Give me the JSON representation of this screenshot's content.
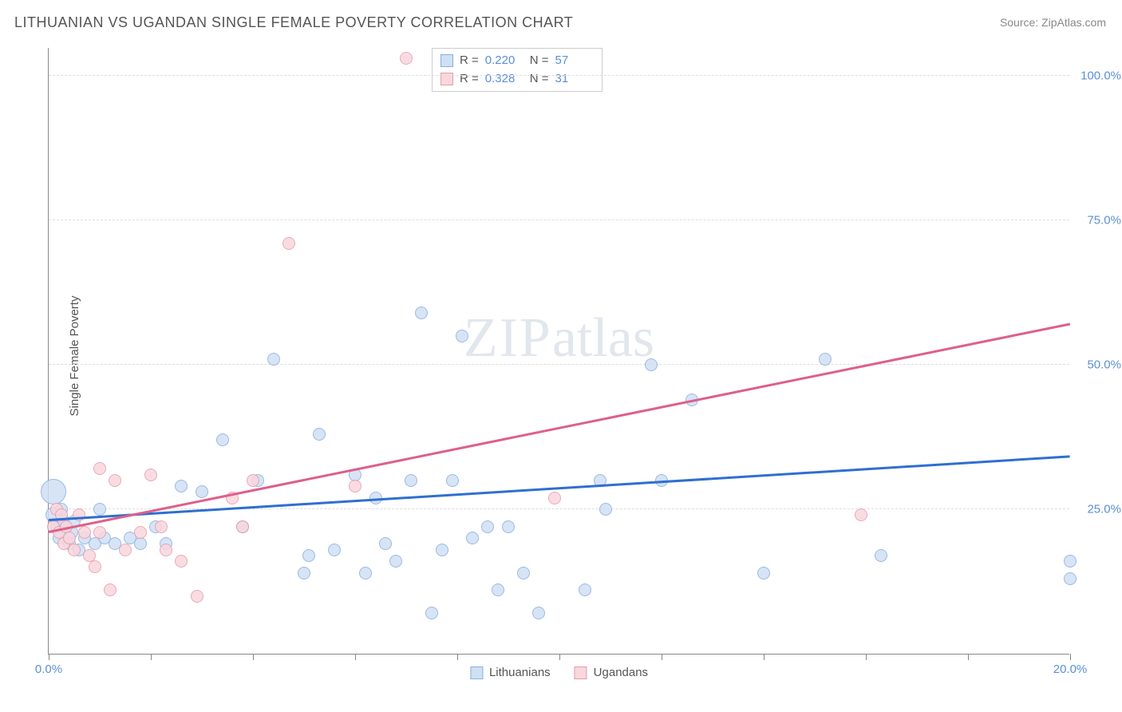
{
  "title": "LITHUANIAN VS UGANDAN SINGLE FEMALE POVERTY CORRELATION CHART",
  "source_label": "Source: ",
  "source_link_text": "ZipAtlas.com",
  "y_axis_label": "Single Female Poverty",
  "watermark_a": "ZIP",
  "watermark_b": "atlas",
  "chart": {
    "type": "scatter",
    "xlim": [
      0,
      20
    ],
    "ylim": [
      0,
      105
    ],
    "x_tick_positions": [
      0,
      2,
      4,
      6,
      8,
      10,
      12,
      14,
      16,
      18,
      20
    ],
    "x_tick_labels_shown": {
      "0": "0.0%",
      "20": "20.0%"
    },
    "y_tick_positions": [
      25,
      50,
      75,
      100
    ],
    "y_tick_labels": {
      "25": "25.0%",
      "50": "50.0%",
      "75": "75.0%",
      "100": "100.0%"
    },
    "background_color": "#ffffff",
    "grid_color": "#dddddd",
    "axis_color": "#888888",
    "tick_label_color": "#5b8fd6",
    "title_color": "#555555",
    "title_fontsize": 18,
    "label_fontsize": 15,
    "point_base_radius": 8,
    "series": [
      {
        "id": "lithuanians",
        "name": "Lithuanians",
        "fill": "#cfe0f5",
        "stroke": "#8aaedf",
        "trend_color": "#2e6fd1",
        "trend_width": 2.5,
        "trend_y_at_x0": 23,
        "trend_y_at_xmax": 34,
        "r_value": "0.220",
        "n_value": "57",
        "points": [
          {
            "x": 0.1,
            "y": 28,
            "r": 16
          },
          {
            "x": 0.1,
            "y": 24,
            "r": 10
          },
          {
            "x": 0.15,
            "y": 22
          },
          {
            "x": 0.2,
            "y": 20
          },
          {
            "x": 0.25,
            "y": 25
          },
          {
            "x": 0.3,
            "y": 23
          },
          {
            "x": 0.4,
            "y": 19
          },
          {
            "x": 0.45,
            "y": 21
          },
          {
            "x": 0.5,
            "y": 23
          },
          {
            "x": 0.6,
            "y": 18
          },
          {
            "x": 0.7,
            "y": 20
          },
          {
            "x": 0.9,
            "y": 19
          },
          {
            "x": 1.0,
            "y": 25
          },
          {
            "x": 1.1,
            "y": 20
          },
          {
            "x": 1.3,
            "y": 19
          },
          {
            "x": 1.6,
            "y": 20
          },
          {
            "x": 1.8,
            "y": 19
          },
          {
            "x": 2.1,
            "y": 22
          },
          {
            "x": 2.3,
            "y": 19
          },
          {
            "x": 2.6,
            "y": 29
          },
          {
            "x": 3.0,
            "y": 28
          },
          {
            "x": 3.4,
            "y": 37
          },
          {
            "x": 3.8,
            "y": 22
          },
          {
            "x": 4.1,
            "y": 30
          },
          {
            "x": 4.4,
            "y": 51
          },
          {
            "x": 5.0,
            "y": 14
          },
          {
            "x": 5.1,
            "y": 17
          },
          {
            "x": 5.3,
            "y": 38
          },
          {
            "x": 5.6,
            "y": 18
          },
          {
            "x": 6.0,
            "y": 31
          },
          {
            "x": 6.2,
            "y": 14
          },
          {
            "x": 6.4,
            "y": 27
          },
          {
            "x": 6.6,
            "y": 19
          },
          {
            "x": 6.8,
            "y": 16
          },
          {
            "x": 7.1,
            "y": 30
          },
          {
            "x": 7.3,
            "y": 59
          },
          {
            "x": 7.5,
            "y": 7
          },
          {
            "x": 7.7,
            "y": 18
          },
          {
            "x": 7.9,
            "y": 30
          },
          {
            "x": 8.1,
            "y": 55
          },
          {
            "x": 8.3,
            "y": 20
          },
          {
            "x": 8.6,
            "y": 22
          },
          {
            "x": 8.8,
            "y": 11
          },
          {
            "x": 9.0,
            "y": 22
          },
          {
            "x": 9.3,
            "y": 14
          },
          {
            "x": 9.6,
            "y": 7
          },
          {
            "x": 10.5,
            "y": 11
          },
          {
            "x": 10.8,
            "y": 30
          },
          {
            "x": 10.9,
            "y": 25
          },
          {
            "x": 11.8,
            "y": 50
          },
          {
            "x": 12.0,
            "y": 30
          },
          {
            "x": 12.6,
            "y": 44
          },
          {
            "x": 14.0,
            "y": 14
          },
          {
            "x": 15.2,
            "y": 51
          },
          {
            "x": 16.3,
            "y": 17
          },
          {
            "x": 20.0,
            "y": 13
          },
          {
            "x": 20.0,
            "y": 16
          }
        ]
      },
      {
        "id": "ugandans",
        "name": "Ugandans",
        "fill": "#f8d7dd",
        "stroke": "#e79aad",
        "trend_color": "#de5f8a",
        "trend_width": 2.5,
        "trend_y_at_x0": 21,
        "trend_y_at_xmax": 57,
        "r_value": "0.328",
        "n_value": "31",
        "points": [
          {
            "x": 0.1,
            "y": 22
          },
          {
            "x": 0.15,
            "y": 25
          },
          {
            "x": 0.2,
            "y": 21
          },
          {
            "x": 0.25,
            "y": 24
          },
          {
            "x": 0.3,
            "y": 19
          },
          {
            "x": 0.35,
            "y": 22
          },
          {
            "x": 0.4,
            "y": 20
          },
          {
            "x": 0.5,
            "y": 18
          },
          {
            "x": 0.6,
            "y": 24
          },
          {
            "x": 0.7,
            "y": 21
          },
          {
            "x": 0.8,
            "y": 17
          },
          {
            "x": 0.9,
            "y": 15
          },
          {
            "x": 1.0,
            "y": 32
          },
          {
            "x": 1.0,
            "y": 21
          },
          {
            "x": 1.2,
            "y": 11
          },
          {
            "x": 1.3,
            "y": 30
          },
          {
            "x": 1.5,
            "y": 18
          },
          {
            "x": 1.8,
            "y": 21
          },
          {
            "x": 2.0,
            "y": 31
          },
          {
            "x": 2.2,
            "y": 22
          },
          {
            "x": 2.3,
            "y": 18
          },
          {
            "x": 2.6,
            "y": 16
          },
          {
            "x": 2.9,
            "y": 10
          },
          {
            "x": 3.6,
            "y": 27
          },
          {
            "x": 3.8,
            "y": 22
          },
          {
            "x": 4.0,
            "y": 30
          },
          {
            "x": 4.7,
            "y": 71
          },
          {
            "x": 6.0,
            "y": 29
          },
          {
            "x": 7.0,
            "y": 103
          },
          {
            "x": 9.9,
            "y": 27
          },
          {
            "x": 15.9,
            "y": 24
          }
        ]
      }
    ]
  },
  "legend": {
    "stats_rows": [
      {
        "series": "lithuanians"
      },
      {
        "series": "ugandans"
      }
    ],
    "r_prefix": "R =",
    "n_prefix": "N =",
    "bottom_items": [
      "lithuanians",
      "ugandans"
    ]
  }
}
